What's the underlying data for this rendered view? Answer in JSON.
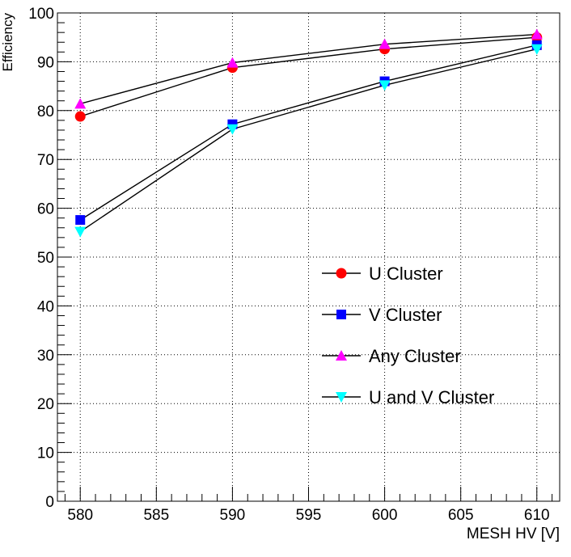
{
  "chart_data": {
    "type": "line",
    "xlabel": "MESH HV [V]",
    "ylabel": "Efficiency",
    "xlim": [
      578.5,
      611.5
    ],
    "ylim": [
      0,
      100
    ],
    "x_ticks": [
      580,
      585,
      590,
      595,
      600,
      605,
      610
    ],
    "y_ticks": [
      0,
      10,
      20,
      30,
      40,
      50,
      60,
      70,
      80,
      90,
      100
    ],
    "x_tick_labels": [
      "580",
      "585",
      "590",
      "595",
      "600",
      "605",
      "610"
    ],
    "y_tick_labels": [
      "0",
      "10",
      "20",
      "30",
      "40",
      "50",
      "60",
      "70",
      "80",
      "90",
      "100"
    ],
    "grid": true,
    "legend_position": "bottom-right",
    "x": [
      580,
      590,
      600,
      610
    ],
    "series": [
      {
        "name": "U Cluster",
        "marker": "circle",
        "color": "#ff0000",
        "values": [
          78.8,
          88.8,
          92.6,
          95.0
        ]
      },
      {
        "name": "V Cluster",
        "marker": "square",
        "color": "#0000ff",
        "values": [
          57.6,
          77.2,
          86.0,
          93.4
        ]
      },
      {
        "name": "Any Cluster",
        "marker": "triangle-up",
        "color": "#ff00ff",
        "values": [
          81.4,
          89.8,
          93.6,
          95.6
        ]
      },
      {
        "name": "U and V Cluster",
        "marker": "triangle-down",
        "color": "#00ffff",
        "values": [
          55.2,
          76.2,
          85.2,
          92.6
        ]
      }
    ]
  }
}
